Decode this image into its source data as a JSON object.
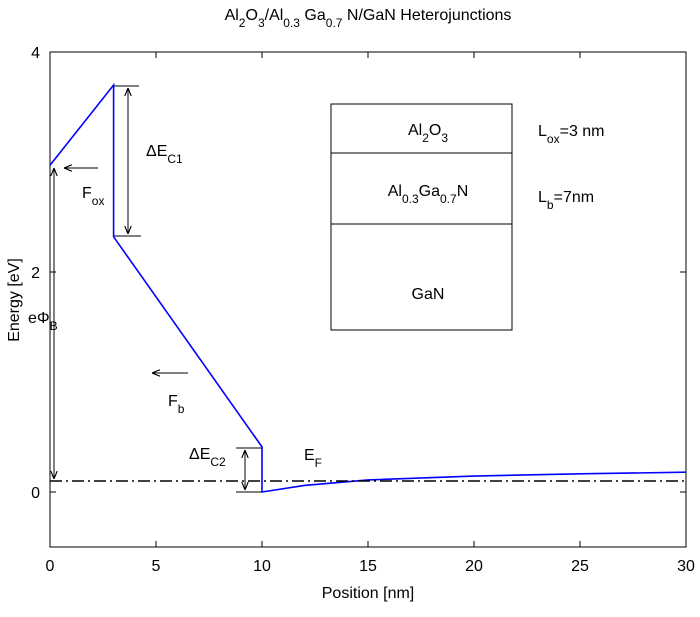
{
  "chart_data": {
    "type": "line",
    "title": [
      "Al",
      "2",
      "O",
      "3",
      "/Al",
      "0.3",
      " Ga",
      "0.7",
      " N/GaN Heterojunctions"
    ],
    "x_label": "Position [nm]",
    "y_label": "Energy [eV]",
    "xlim": [
      0,
      30
    ],
    "ylim": [
      -0.5,
      4
    ],
    "xticks": [
      0,
      5,
      10,
      15,
      20,
      25,
      30
    ],
    "yticks": [
      0,
      2,
      4
    ],
    "series": [
      {
        "color": "#0000ff",
        "linestyle": "solid",
        "x": [
          0,
          3,
          3,
          10,
          10,
          12,
          15,
          20,
          25,
          30
        ],
        "values": [
          2.97,
          3.7,
          2.32,
          0.41,
          0,
          0.06,
          0.11,
          0.145,
          0.165,
          0.18
        ]
      },
      {
        "color": "#000000",
        "linestyle": "dashdot",
        "x": [
          0,
          30
        ],
        "values": [
          0.1,
          0.1
        ]
      }
    ],
    "annotations": [
      [
        "ΔE",
        "C1"
      ],
      [
        "F",
        "ox"
      ],
      [
        "eΦ",
        "B"
      ],
      [
        "F",
        "b"
      ],
      [
        "ΔE",
        "C2"
      ],
      [
        "E",
        "F"
      ],
      [
        "L",
        "ox",
        "=3 nm"
      ],
      [
        "L",
        "b",
        "=7nm"
      ]
    ],
    "layers": [
      [
        "Al",
        "2",
        "O",
        "3"
      ],
      [
        "Al",
        "0.3",
        "Ga",
        "0.7",
        "N"
      ],
      [
        "GaN"
      ]
    ]
  }
}
